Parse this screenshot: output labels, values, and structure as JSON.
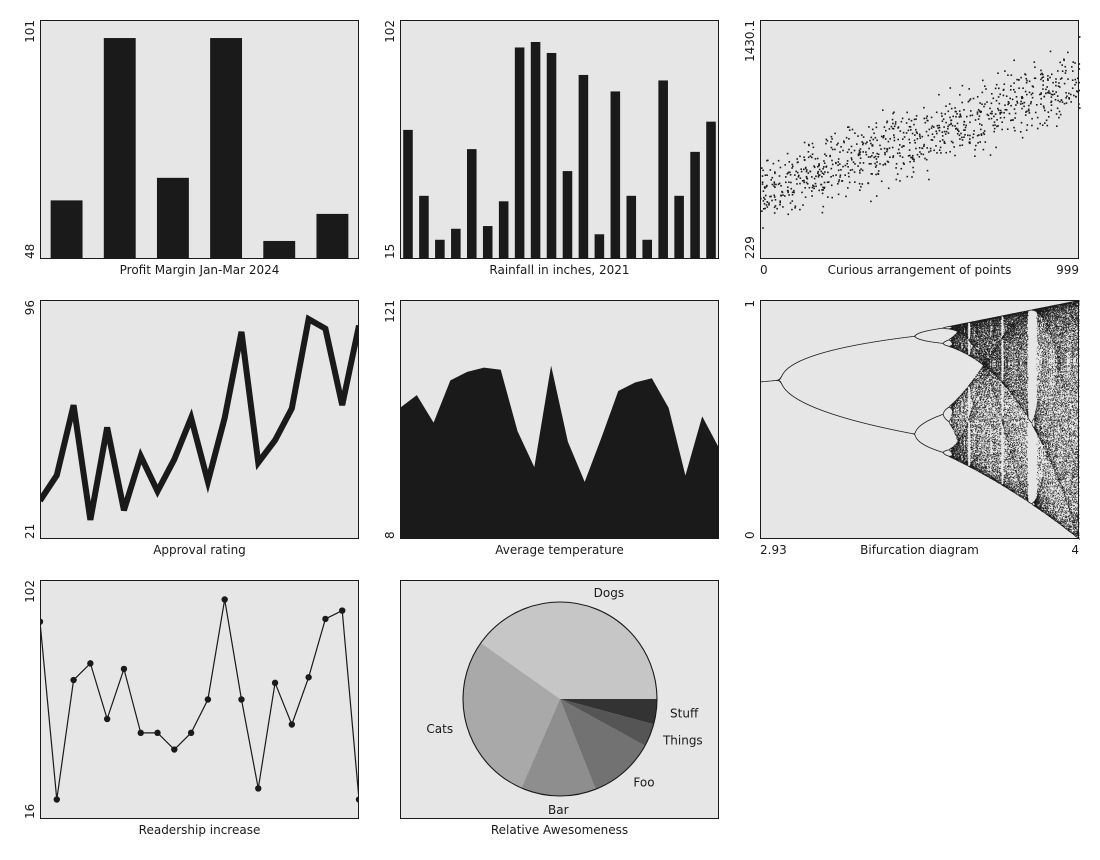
{
  "colors": {
    "panel": "#e6e6e6",
    "ink": "#1a1a1a",
    "frame": "#1a1a1a"
  },
  "chart_data": [
    {
      "type": "bar",
      "title": "Profit Margin Jan-Mar 2024",
      "ylim": [
        48,
        101
      ],
      "y_ticks": [
        "48",
        "101"
      ],
      "values": [
        61,
        97,
        66,
        97,
        52,
        58
      ]
    },
    {
      "type": "bar",
      "title": "Rainfall in inches, 2021",
      "ylim": [
        15,
        102
      ],
      "y_ticks": [
        "15",
        "102"
      ],
      "values": [
        62,
        38,
        22,
        26,
        55,
        27,
        36,
        92,
        94,
        90,
        47,
        82,
        24,
        76,
        38,
        22,
        80,
        38,
        54,
        65
      ]
    },
    {
      "type": "scatter",
      "title": "Curious arrangement of points",
      "xlim": [
        0,
        999
      ],
      "ylim": [
        229,
        1430.1
      ],
      "x_ticks": [
        "0",
        "999"
      ],
      "y_ticks": [
        "229",
        "1430.1"
      ],
      "generated": {
        "count": 900,
        "trend_start": 560,
        "trend_end": 1130,
        "spread": 170
      }
    },
    {
      "type": "line",
      "title": "Approval rating",
      "ylim": [
        21,
        96
      ],
      "y_ticks": [
        "21",
        "96"
      ],
      "line": "thick",
      "values": [
        33,
        41,
        63,
        27,
        56,
        30,
        47,
        36,
        46,
        59,
        39,
        59,
        86,
        45,
        52,
        62,
        90,
        87,
        63,
        88
      ]
    },
    {
      "type": "area",
      "title": "Average temperature",
      "ylim": [
        8,
        121
      ],
      "y_ticks": [
        "8",
        "121"
      ],
      "values": [
        70,
        76,
        63,
        83,
        87,
        89,
        88,
        59,
        42,
        90,
        54,
        35,
        56,
        78,
        82,
        84,
        70,
        38,
        66,
        51
      ]
    },
    {
      "type": "scatter",
      "title": "Bifurcation diagram",
      "xlim": [
        2.93,
        4
      ],
      "ylim": [
        0,
        1
      ],
      "x_ticks": [
        "2.93",
        "4"
      ],
      "y_ticks": [
        "0",
        "1"
      ],
      "generated": {
        "map": "logistic",
        "r_steps": 1300,
        "samples": 70
      }
    },
    {
      "type": "line",
      "title": "Readership increase",
      "ylim": [
        16,
        102
      ],
      "y_ticks": [
        "16",
        "102"
      ],
      "line": "thin-with-markers",
      "values": [
        87,
        23,
        66,
        72,
        52,
        70,
        47,
        47,
        41,
        47,
        59,
        95,
        59,
        27,
        65,
        50,
        67,
        88,
        91,
        23
      ]
    },
    {
      "type": "pie",
      "title": "Relative Awesomeness",
      "slices": [
        {
          "label": "Dogs",
          "value": 40.2,
          "color": "#c6c6c6"
        },
        {
          "label": "Cats",
          "value": 28.3,
          "color": "#a9a9a9"
        },
        {
          "label": "Bar",
          "value": 12.5,
          "color": "#8e8e8e"
        },
        {
          "label": "Foo",
          "value": 11.0,
          "color": "#727272"
        },
        {
          "label": "Things",
          "value": 3.8,
          "color": "#555555"
        },
        {
          "label": "Stuff",
          "value": 4.2,
          "color": "#333333"
        }
      ]
    }
  ]
}
